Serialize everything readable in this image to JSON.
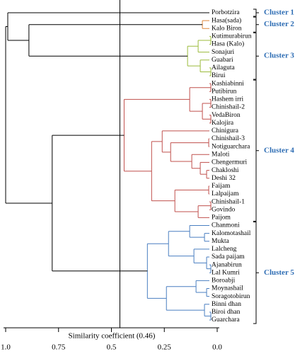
{
  "chart_data": {
    "type": "dendrogram",
    "xlabel": "Similarity coefficient (0.46)",
    "cutoff": 0.46,
    "xlim": [
      1,
      0
    ],
    "xticks": [
      {
        "value": 1,
        "label": "1.0"
      },
      0.75,
      0.5,
      0.25,
      {
        "value": 0,
        "label": "0.0"
      }
    ],
    "link_color": "#000000",
    "cluster_label_color": "#2e6db4",
    "tree": {
      "height": 1.0,
      "children": [
        {
          "height": 0.99,
          "children": [
            {
              "label": "Porbotzira",
              "cluster": "Cluster 1"
            },
            {
              "height": 0.89,
              "children": [
                {
                  "height": 0.07,
                  "color": "#e0883a",
                  "cluster": "Cluster 2",
                  "children": [
                    {
                      "label": "Hasa(sada)"
                    },
                    {
                      "label": "Kalo Biron"
                    }
                  ]
                },
                {
                  "height": 0.14,
                  "color": "#9bbb3b",
                  "cluster": "Cluster 3",
                  "children": [
                    {
                      "height": 0.09,
                      "children": [
                        {
                          "height": 0.03,
                          "children": [
                            {
                              "label": "Kutimurabirun"
                            },
                            {
                              "label": "Hasa (Kalo)"
                            }
                          ]
                        },
                        {
                          "label": "Sonajuri"
                        }
                      ]
                    },
                    {
                      "height": 0.08,
                      "children": [
                        {
                          "label": "Guabari"
                        },
                        {
                          "height": 0.03,
                          "children": [
                            {
                              "label": "Ailaguta"
                            },
                            {
                              "label": "Birui"
                            }
                          ]
                        }
                      ]
                    }
                  ]
                }
              ]
            }
          ]
        },
        {
          "height": 0.78,
          "children": [
            {
              "height": 0.44,
              "color": "#c0504d",
              "cluster": "Cluster 4",
              "children": [
                {
                  "height": 0.13,
                  "children": [
                    {
                      "height": 0.03,
                      "children": [
                        {
                          "label": "Kashiabinni"
                        },
                        {
                          "label": "Putibirun"
                        }
                      ]
                    },
                    {
                      "height": 0.07,
                      "children": [
                        {
                          "height": 0.03,
                          "children": [
                            {
                              "label": "Hashem irri"
                            },
                            {
                              "label": "Chinishail-2"
                            }
                          ]
                        },
                        {
                          "height": 0.03,
                          "children": [
                            {
                              "label": "VedaBiron"
                            },
                            {
                              "label": "Kalojira"
                            }
                          ]
                        }
                      ]
                    }
                  ]
                },
                {
                  "height": 0.31,
                  "children": [
                    {
                      "height": 0.26,
                      "children": [
                        {
                          "label": "Chinigura"
                        },
                        {
                          "height": 0.22,
                          "children": [
                            {
                              "height": 0.04,
                              "children": [
                                {
                                  "label": "Chinishail-3"
                                },
                                {
                                  "label": "Notiguarchara"
                                }
                              ]
                            },
                            {
                              "height": 0.12,
                              "children": [
                                {
                                  "label": "Maloti"
                                },
                                {
                                  "height": 0.08,
                                  "children": [
                                    {
                                      "label": "Chengermuri"
                                    },
                                    {
                                      "height": 0.05,
                                      "children": [
                                        {
                                          "label": "Chakloshi"
                                        },
                                        {
                                          "label": "Deshi 32"
                                        }
                                      ]
                                    }
                                  ]
                                }
                              ]
                            }
                          ]
                        }
                      ]
                    },
                    {
                      "height": 0.2,
                      "children": [
                        {
                          "height": 0.04,
                          "children": [
                            {
                              "label": "Faijam"
                            },
                            {
                              "label": "Lalpaijam"
                            }
                          ]
                        },
                        {
                          "height": 0.09,
                          "children": [
                            {
                              "height": 0.03,
                              "children": [
                                {
                                  "label": "Chinishail-1"
                                },
                                {
                                  "label": "Govindo"
                                }
                              ]
                            },
                            {
                              "label": "Paijom"
                            }
                          ]
                        }
                      ]
                    }
                  ]
                }
              ]
            },
            {
              "height": 0.33,
              "color": "#4a7fc1",
              "cluster": "Cluster 5",
              "children": [
                {
                  "height": 0.23,
                  "children": [
                    {
                      "height": 0.13,
                      "children": [
                        {
                          "label": "Chanmoni"
                        },
                        {
                          "height": 0.06,
                          "children": [
                            {
                              "label": "Kalomotashail"
                            },
                            {
                              "label": "Mukta"
                            }
                          ]
                        }
                      ]
                    },
                    {
                      "height": 0.11,
                      "children": [
                        {
                          "label": "Lalcheng"
                        },
                        {
                          "height": 0.05,
                          "children": [
                            {
                              "label": "Sada paijam"
                            },
                            {
                              "height": 0.03,
                              "children": [
                                {
                                  "label": "Ajanabirun"
                                },
                                {
                                  "label": "Lal Kumri"
                                }
                              ]
                            }
                          ]
                        }
                      ]
                    }
                  ]
                },
                {
                  "height": 0.24,
                  "children": [
                    {
                      "height": 0.1,
                      "children": [
                        {
                          "label": "Boroabji"
                        },
                        {
                          "height": 0.05,
                          "children": [
                            {
                              "label": "Moynashail"
                            },
                            {
                              "label": "Soragotobirun"
                            }
                          ]
                        }
                      ]
                    },
                    {
                      "height": 0.06,
                      "children": [
                        {
                          "label": "Binni dhan"
                        },
                        {
                          "height": 0.03,
                          "children": [
                            {
                              "label": "Biroi dhan"
                            },
                            {
                              "label": "Guarchara"
                            }
                          ]
                        }
                      ]
                    }
                  ]
                }
              ]
            }
          ]
        }
      ]
    }
  }
}
